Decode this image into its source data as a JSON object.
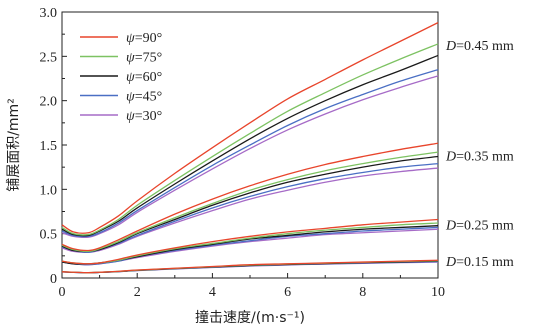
{
  "chart_data": {
    "type": "line",
    "xlabel": "撞击速度/(m·s⁻¹)",
    "ylabel": "铺展面积/mm²",
    "xlim": [
      0,
      10
    ],
    "ylim": [
      0,
      3.0
    ],
    "x_ticks": [
      "0",
      "2",
      "4",
      "6",
      "8",
      "10"
    ],
    "y_ticks": [
      "0",
      "0.5",
      "1.0",
      "1.5",
      "2.0",
      "2.5",
      "3.0"
    ],
    "grid": false,
    "legend_position": "top-left",
    "legend": [
      {
        "label_prefix": "ψ",
        "label_value": "=90°",
        "color": "#e8452c"
      },
      {
        "label_prefix": "ψ",
        "label_value": "=75°",
        "color": "#7dc262"
      },
      {
        "label_prefix": "ψ",
        "label_value": "=60°",
        "color": "#1a1a1a"
      },
      {
        "label_prefix": "ψ",
        "label_value": "=45°",
        "color": "#4a6fc4"
      },
      {
        "label_prefix": "ψ",
        "label_value": "=30°",
        "color": "#a66bc7"
      }
    ],
    "groups": [
      {
        "label_prefix": "D",
        "label_value": "=0.45 mm",
        "x": [
          0,
          0.3,
          0.7,
          1.0,
          1.5,
          2,
          3,
          4,
          5,
          6,
          7,
          8,
          9,
          10
        ],
        "series": [
          {
            "color": "#e8452c",
            "values": [
              0.6,
              0.52,
              0.51,
              0.57,
              0.7,
              0.87,
              1.18,
              1.47,
              1.75,
              2.02,
              2.24,
              2.46,
              2.67,
              2.88
            ]
          },
          {
            "color": "#7dc262",
            "values": [
              0.57,
              0.5,
              0.49,
              0.54,
              0.66,
              0.82,
              1.1,
              1.37,
              1.63,
              1.88,
              2.09,
              2.29,
              2.47,
              2.64
            ]
          },
          {
            "color": "#1a1a1a",
            "values": [
              0.55,
              0.49,
              0.48,
              0.53,
              0.64,
              0.79,
              1.06,
              1.32,
              1.57,
              1.8,
              2.0,
              2.18,
              2.34,
              2.51
            ]
          },
          {
            "color": "#4a6fc4",
            "values": [
              0.53,
              0.48,
              0.47,
              0.51,
              0.62,
              0.76,
              1.02,
              1.27,
              1.5,
              1.72,
              1.91,
              2.07,
              2.22,
              2.35
            ]
          },
          {
            "color": "#a66bc7",
            "values": [
              0.51,
              0.47,
              0.46,
              0.5,
              0.6,
              0.74,
              0.99,
              1.23,
              1.46,
              1.67,
              1.85,
              2.01,
              2.15,
              2.28
            ]
          }
        ]
      },
      {
        "label_prefix": "D",
        "label_value": "=0.35 mm",
        "x": [
          0,
          0.3,
          0.7,
          1.0,
          1.5,
          2,
          3,
          4,
          5,
          6,
          7,
          8,
          9,
          10
        ],
        "series": [
          {
            "color": "#e8452c",
            "values": [
              0.38,
              0.33,
              0.31,
              0.34,
              0.43,
              0.53,
              0.72,
              0.89,
              1.04,
              1.17,
              1.28,
              1.37,
              1.45,
              1.52
            ]
          },
          {
            "color": "#7dc262",
            "values": [
              0.37,
              0.32,
              0.3,
              0.33,
              0.41,
              0.51,
              0.68,
              0.84,
              0.99,
              1.11,
              1.21,
              1.29,
              1.36,
              1.42
            ]
          },
          {
            "color": "#1a1a1a",
            "values": [
              0.36,
              0.31,
              0.3,
              0.32,
              0.4,
              0.5,
              0.66,
              0.82,
              0.96,
              1.08,
              1.17,
              1.25,
              1.32,
              1.37
            ]
          },
          {
            "color": "#4a6fc4",
            "values": [
              0.35,
              0.31,
              0.29,
              0.32,
              0.39,
              0.48,
              0.64,
              0.79,
              0.92,
              1.03,
              1.12,
              1.19,
              1.25,
              1.29
            ]
          },
          {
            "color": "#a66bc7",
            "values": [
              0.34,
              0.3,
              0.29,
              0.31,
              0.38,
              0.47,
              0.62,
              0.76,
              0.89,
              0.99,
              1.08,
              1.15,
              1.2,
              1.24
            ]
          }
        ]
      },
      {
        "label_prefix": "D",
        "label_value": "=0.25 mm",
        "x": [
          0,
          0.3,
          0.7,
          1.0,
          1.5,
          2,
          3,
          4,
          5,
          6,
          7,
          8,
          9,
          10
        ],
        "series": [
          {
            "color": "#e8452c",
            "values": [
              0.19,
              0.17,
              0.16,
              0.17,
              0.21,
              0.26,
              0.34,
              0.41,
              0.47,
              0.52,
              0.56,
              0.6,
              0.63,
              0.66
            ]
          },
          {
            "color": "#7dc262",
            "values": [
              0.19,
              0.17,
              0.16,
              0.17,
              0.2,
              0.25,
              0.33,
              0.39,
              0.45,
              0.5,
              0.54,
              0.57,
              0.6,
              0.62
            ]
          },
          {
            "color": "#1a1a1a",
            "values": [
              0.18,
              0.16,
              0.16,
              0.17,
              0.2,
              0.24,
              0.32,
              0.38,
              0.44,
              0.48,
              0.52,
              0.55,
              0.57,
              0.59
            ]
          },
          {
            "color": "#4a6fc4",
            "values": [
              0.18,
              0.16,
              0.15,
              0.16,
              0.19,
              0.24,
              0.31,
              0.37,
              0.42,
              0.47,
              0.5,
              0.53,
              0.55,
              0.57
            ]
          },
          {
            "color": "#a66bc7",
            "values": [
              0.18,
              0.16,
              0.15,
              0.16,
              0.19,
              0.23,
              0.3,
              0.36,
              0.41,
              0.45,
              0.49,
              0.51,
              0.53,
              0.55
            ]
          }
        ]
      },
      {
        "label_prefix": "D",
        "label_value": "=0.15 mm",
        "x": [
          0,
          0.3,
          0.7,
          1.0,
          1.5,
          2,
          3,
          4,
          5,
          6,
          7,
          8,
          9,
          10
        ],
        "series": [
          {
            "color": "#e8452c",
            "values": [
              0.07,
              0.065,
              0.06,
              0.065,
              0.075,
              0.09,
              0.11,
              0.13,
              0.15,
              0.16,
              0.17,
              0.18,
              0.19,
              0.2
            ]
          },
          {
            "color": "#7dc262",
            "values": [
              0.07,
              0.065,
              0.06,
              0.065,
              0.074,
              0.088,
              0.108,
              0.127,
              0.145,
              0.157,
              0.167,
              0.177,
              0.186,
              0.195
            ]
          },
          {
            "color": "#1a1a1a",
            "values": [
              0.07,
              0.064,
              0.06,
              0.064,
              0.073,
              0.086,
              0.106,
              0.124,
              0.141,
              0.153,
              0.163,
              0.173,
              0.181,
              0.19
            ]
          },
          {
            "color": "#4a6fc4",
            "values": [
              0.069,
              0.063,
              0.059,
              0.063,
              0.072,
              0.085,
              0.104,
              0.121,
              0.138,
              0.15,
              0.16,
              0.169,
              0.177,
              0.185
            ]
          },
          {
            "color": "#a66bc7",
            "values": [
              0.069,
              0.063,
              0.059,
              0.063,
              0.071,
              0.084,
              0.102,
              0.119,
              0.135,
              0.147,
              0.157,
              0.165,
              0.173,
              0.18
            ]
          }
        ]
      }
    ]
  }
}
